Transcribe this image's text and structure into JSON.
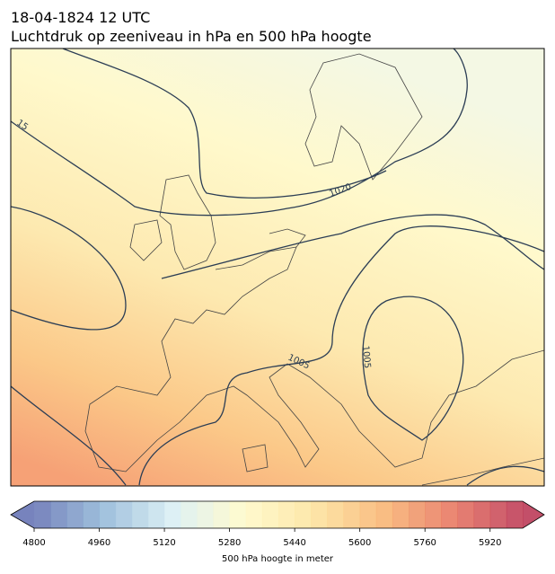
{
  "header": {
    "title": "18-04-1824 12 UTC",
    "subtitle": "Luchtdruk op zeeniveau in hPa en 500 hPa hoogte"
  },
  "contour_labels": [
    "15",
    "1020",
    "1005",
    "1005"
  ],
  "colorbar": {
    "label": "500 hPa hoogte in meter",
    "lim": [
      4800,
      6000
    ],
    "ticks": [
      4800,
      4960,
      5120,
      5280,
      5440,
      5600,
      5760,
      5920
    ],
    "colors": [
      "#5f6db1",
      "#8fb6d7",
      "#d8eef3",
      "#fffac6",
      "#fde29a",
      "#f8b26d",
      "#e6705a",
      "#b9304f"
    ]
  }
}
